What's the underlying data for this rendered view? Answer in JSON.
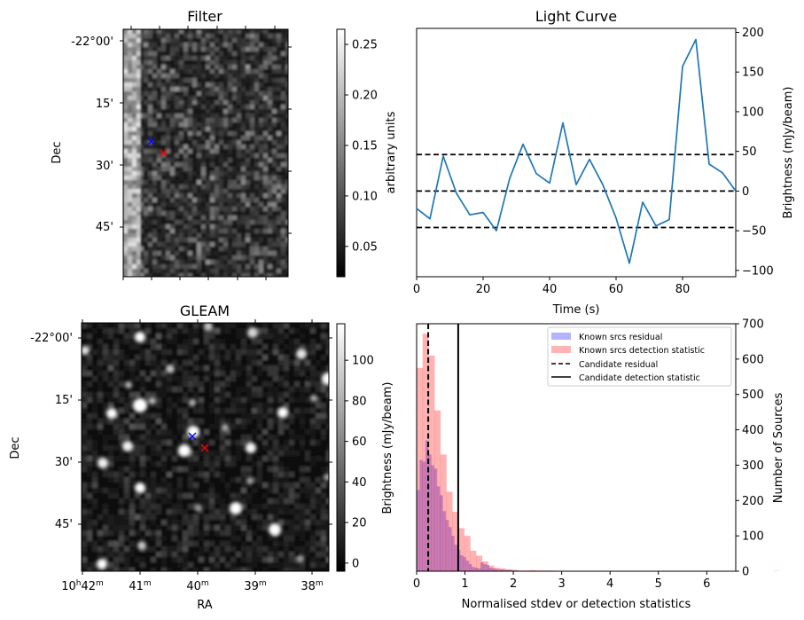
{
  "chart_data": [
    {
      "id": "filter",
      "type": "heatmap",
      "title": "Filter",
      "xlabel": "",
      "ylabel": "Dec",
      "yticks": [
        "-22°00'",
        "15'",
        "30'",
        "45'"
      ],
      "xticks_labels_visible": false,
      "colormap": "gray",
      "colorbar": {
        "label": "arbitrary units",
        "ticks": [
          "0.05",
          "0.10",
          "0.15",
          "0.20",
          "0.25"
        ],
        "range": [
          0.02,
          0.265
        ]
      },
      "markers": [
        {
          "name": "blue-x",
          "color": "#0000ff",
          "note": "candidate position"
        },
        {
          "name": "red-x",
          "color": "#ff0000",
          "note": "candidate position"
        }
      ]
    },
    {
      "id": "light-curve",
      "type": "line",
      "title": "Light Curve",
      "xlabel": "Time (s)",
      "ylabel": "Brightness (mJy/beam)",
      "xlim": [
        0,
        96
      ],
      "ylim": [
        -108,
        205
      ],
      "xticks": [
        0,
        20,
        40,
        60,
        80
      ],
      "yticks": [
        -100,
        -50,
        0,
        50,
        100,
        150,
        200
      ],
      "x": [
        0,
        4,
        8,
        12,
        16,
        20,
        24,
        28,
        32,
        36,
        40,
        44,
        48,
        52,
        56,
        60,
        64,
        68,
        72,
        76,
        80,
        84,
        88,
        92,
        96
      ],
      "values": [
        -22,
        -35,
        44,
        -3,
        -30,
        -27,
        -50,
        16,
        59,
        22,
        10,
        86,
        8,
        40,
        8,
        -34,
        -91,
        -14,
        -44,
        -36,
        157,
        191,
        34,
        23,
        0
      ],
      "line_color": "#1f77b4",
      "hlines": [
        46,
        0,
        -46
      ],
      "hline_style": "dashed",
      "yaxis_side": "right"
    },
    {
      "id": "gleam",
      "type": "heatmap",
      "title": "GLEAM",
      "xlabel": "RA",
      "ylabel": "Dec",
      "xticks": [
        "10h42m",
        "41m",
        "40m",
        "39m",
        "38m"
      ],
      "yticks": [
        "-22°00'",
        "15'",
        "30'",
        "45'"
      ],
      "colormap": "gray",
      "colorbar": {
        "label": "Brightness (mJy/beam)",
        "ticks": [
          "0",
          "20",
          "40",
          "60",
          "80",
          "100"
        ],
        "range": [
          -4,
          118
        ]
      },
      "markers": [
        {
          "name": "blue-x",
          "color": "#0000ff"
        },
        {
          "name": "red-x",
          "color": "#ff0000"
        }
      ]
    },
    {
      "id": "histogram",
      "type": "bar",
      "title": "",
      "xlabel": "Normalised stdev or detection statistics",
      "ylabel": "Number of Sources",
      "xlim": [
        0,
        6.6
      ],
      "ylim": [
        0,
        700
      ],
      "xticks": [
        0,
        1,
        2,
        3,
        4,
        5,
        6
      ],
      "yticks": [
        0,
        100,
        200,
        300,
        400,
        500,
        600,
        700
      ],
      "yaxis_side": "right",
      "series": [
        {
          "name": "Known srcs residual",
          "color": "#0000ff",
          "alpha": 0.3,
          "bin_start": 0,
          "bin_width": 0.06,
          "values": [
            230,
            315,
            310,
            370,
            330,
            300,
            290,
            240,
            215,
            170,
            145,
            125,
            100,
            75,
            60,
            45,
            40,
            30,
            20,
            12,
            10,
            8,
            25,
            20,
            18,
            10,
            8,
            6,
            4,
            5,
            3,
            4,
            3,
            2,
            2,
            1,
            1,
            1,
            1,
            0,
            0,
            1
          ]
        },
        {
          "name": "Known srcs detection statistic",
          "color": "#ff0000",
          "alpha": 0.3,
          "bin_start": 0,
          "bin_width": 0.123,
          "values": [
            575,
            672,
            610,
            455,
            330,
            225,
            168,
            122,
            100,
            58,
            44,
            28,
            16,
            10,
            8,
            5,
            4,
            2,
            2,
            3,
            2,
            2,
            2,
            1,
            1,
            0,
            0,
            1,
            1,
            1,
            1,
            0,
            0,
            0,
            0,
            1,
            0,
            0,
            0,
            0,
            0,
            0,
            1,
            1,
            1,
            0,
            1,
            0,
            0,
            0,
            0,
            0,
            0,
            0,
            0,
            0,
            0,
            0,
            0,
            0,
            1
          ]
        }
      ],
      "vlines": [
        {
          "name": "Candidate residual",
          "x": 0.24,
          "style": "dashed"
        },
        {
          "name": "Candidate detection statistic",
          "x": 0.86,
          "style": "solid"
        }
      ],
      "legend": {
        "placement": "top-right",
        "entries": [
          {
            "label": "Known srcs residual",
            "kind": "patch",
            "color": "#b3b3ff"
          },
          {
            "label": "Known srcs detection statistic",
            "kind": "patch",
            "color": "#ffb3b3"
          },
          {
            "label": "Candidate residual",
            "kind": "dashed-line",
            "color": "#000000"
          },
          {
            "label": "Candidate detection statistic",
            "kind": "solid-line",
            "color": "#000000"
          }
        ]
      }
    }
  ]
}
